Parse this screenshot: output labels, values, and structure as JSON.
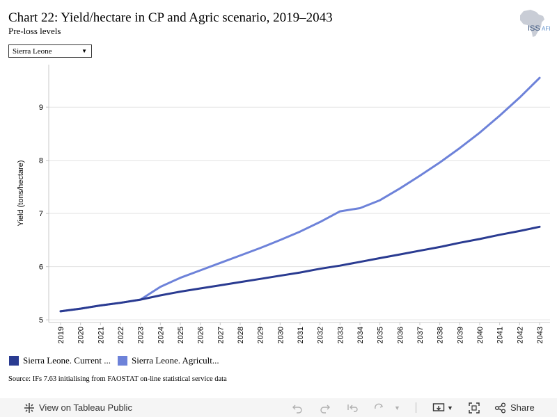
{
  "header": {
    "title": "Chart 22: Yield/hectare in CP and Agric scenario, 2019–2043",
    "subtitle": "Pre-loss levels",
    "logo_text": "ISS",
    "logo_suffix": "AFI"
  },
  "filter": {
    "selected": "Sierra Leone"
  },
  "legend": [
    {
      "label": "Sierra Leone. Current ...",
      "color": "#2a3b91"
    },
    {
      "label": "Sierra Leone. Agricult...",
      "color": "#6d82d9"
    }
  ],
  "source": "Source: IFs 7.63 initialising from FAOSTAT on-line statistical service data",
  "toolbar": {
    "view_label": "View on Tableau Public",
    "share_label": "Share"
  },
  "chart_data": {
    "type": "line",
    "title": "Chart 22: Yield/hectare in CP and Agric scenario, 2019–2043",
    "subtitle": "Pre-loss levels",
    "xlabel": "",
    "ylabel": "Yield (tons/hectare)",
    "x": [
      "2019",
      "2020",
      "2021",
      "2022",
      "2023",
      "2024",
      "2025",
      "2026",
      "2027",
      "2028",
      "2029",
      "2030",
      "2031",
      "2032",
      "2033",
      "2034",
      "2035",
      "2036",
      "2037",
      "2038",
      "2039",
      "2040",
      "2041",
      "2042",
      "2043"
    ],
    "ylim": [
      4.95,
      9.8
    ],
    "yticks": [
      5,
      6,
      7,
      8,
      9
    ],
    "grid": true,
    "legend_position": "bottom-left",
    "series": [
      {
        "name": "Sierra Leone. Current ...",
        "color": "#2a3b91",
        "values": [
          5.16,
          5.21,
          5.27,
          5.32,
          5.38,
          5.46,
          5.53,
          5.59,
          5.65,
          5.71,
          5.77,
          5.83,
          5.89,
          5.96,
          6.02,
          6.09,
          6.16,
          6.23,
          6.3,
          6.37,
          6.45,
          6.52,
          6.6,
          6.67,
          6.75
        ]
      },
      {
        "name": "Sierra Leone. Agricult...",
        "color": "#6d82d9",
        "values": [
          5.16,
          5.21,
          5.27,
          5.32,
          5.38,
          5.62,
          5.79,
          5.93,
          6.07,
          6.21,
          6.35,
          6.5,
          6.66,
          6.84,
          7.04,
          7.1,
          7.25,
          7.47,
          7.71,
          7.96,
          8.23,
          8.52,
          8.84,
          9.18,
          9.55
        ]
      }
    ]
  }
}
